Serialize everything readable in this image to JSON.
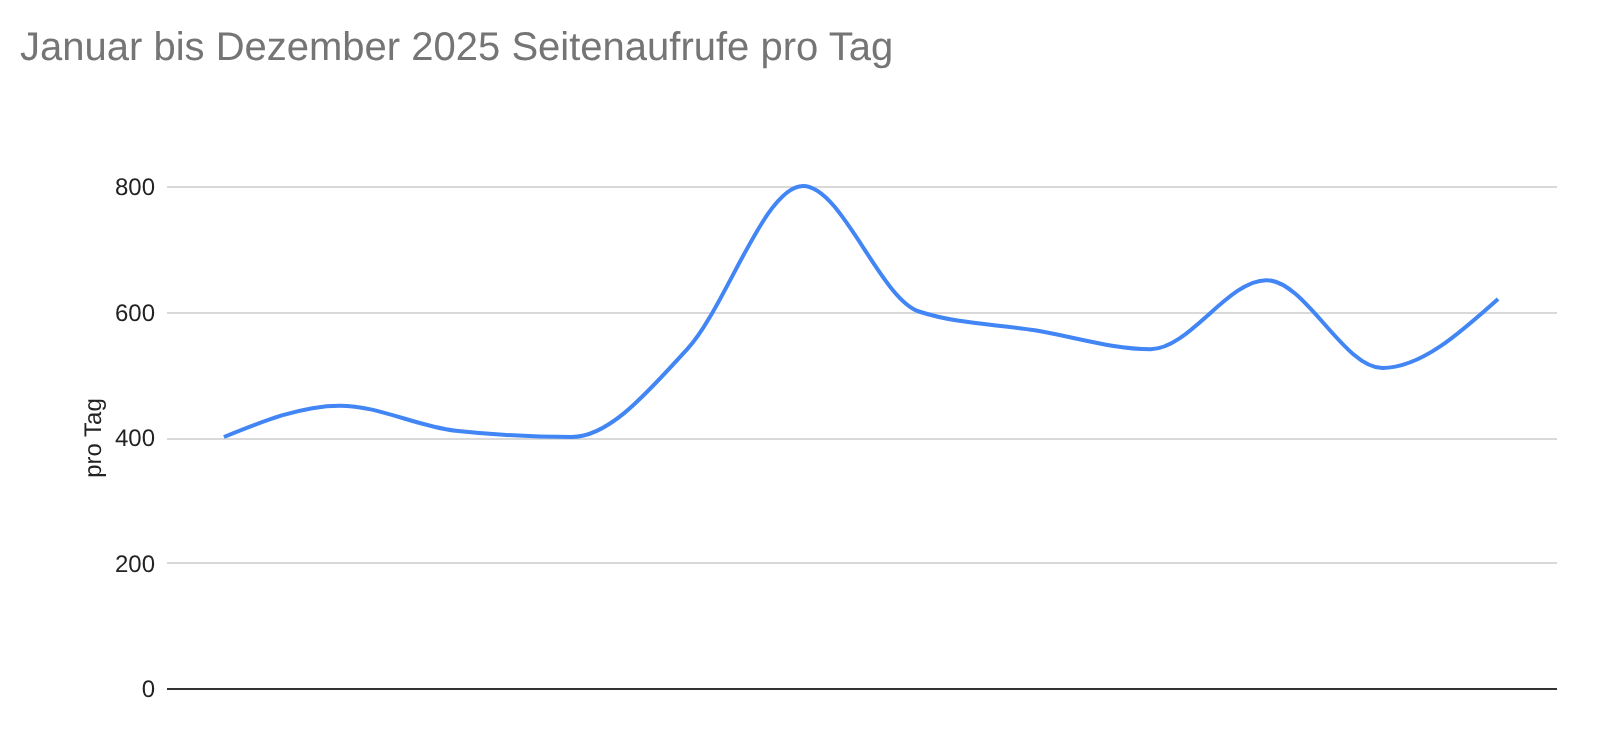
{
  "chart_data": {
    "type": "line",
    "title": "Januar bis Dezember 2025 Seitenaufrufe pro Tag",
    "ylabel": "pro Tag",
    "categories": [
      null,
      null,
      null,
      null,
      null,
      null,
      null,
      null,
      null,
      null,
      null,
      null
    ],
    "series": [
      {
        "color": "#4285f4",
        "values": [
          400,
          450,
          410,
          400,
          540,
          800,
          600,
          570,
          540,
          650,
          510,
          620
        ]
      }
    ],
    "ylim": [
      0,
      800
    ],
    "yticks": [
      0,
      200,
      400,
      600,
      800
    ],
    "grid": "y",
    "tick_labels": "y"
  }
}
